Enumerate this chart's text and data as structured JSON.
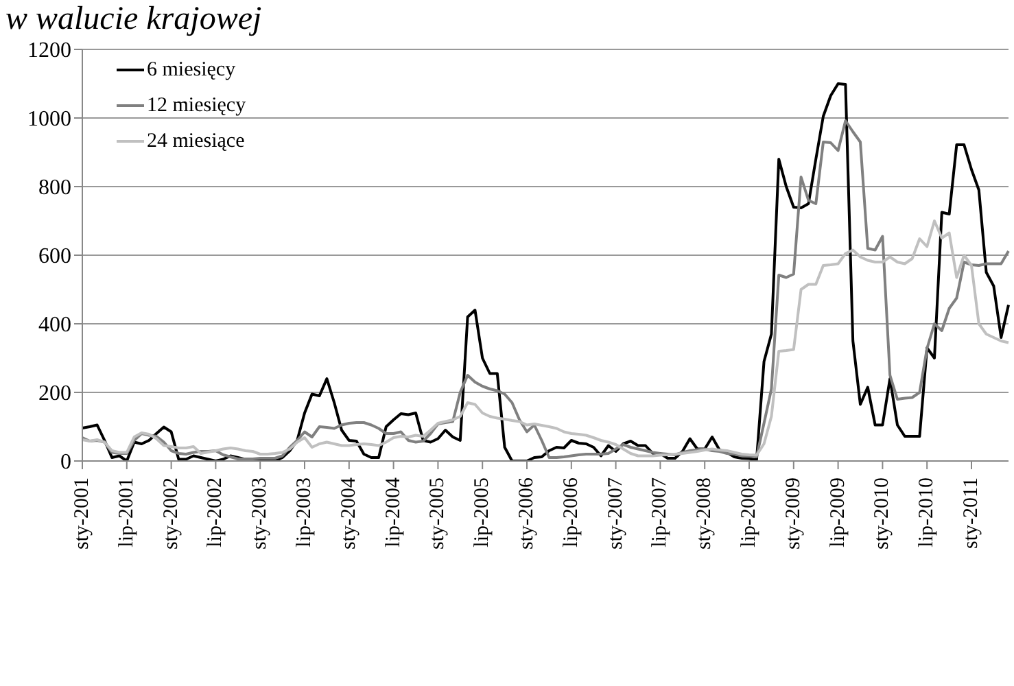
{
  "chart_data": {
    "type": "line",
    "title": "w walucie krajowej",
    "categories": [
      "sty-2001",
      null,
      null,
      null,
      null,
      null,
      "lip-2001",
      null,
      null,
      null,
      null,
      null,
      "sty-2002",
      null,
      null,
      null,
      null,
      null,
      "lip-2002",
      null,
      null,
      null,
      null,
      null,
      "sty-2003",
      null,
      null,
      null,
      null,
      null,
      "lip-2003",
      null,
      null,
      null,
      null,
      null,
      "sty-2004",
      null,
      null,
      null,
      null,
      null,
      "lip-2004",
      null,
      null,
      null,
      null,
      null,
      "sty-2005",
      null,
      null,
      null,
      null,
      null,
      "lip-2005",
      null,
      null,
      null,
      null,
      null,
      "sty-2006",
      null,
      null,
      null,
      null,
      null,
      "lip-2006",
      null,
      null,
      null,
      null,
      null,
      "sty-2007",
      null,
      null,
      null,
      null,
      null,
      "lip-2007",
      null,
      null,
      null,
      null,
      null,
      "sty-2008",
      null,
      null,
      null,
      null,
      null,
      "lip-2008",
      null,
      null,
      null,
      null,
      null,
      "sty-2009",
      null,
      null,
      null,
      null,
      null,
      "lip-2009",
      null,
      null,
      null,
      null,
      null,
      "sty-2010",
      null,
      null,
      null,
      null,
      null,
      "lip-2010",
      null,
      null,
      null,
      null,
      null,
      "sty-2011",
      null,
      null,
      null,
      null,
      null
    ],
    "series": [
      {
        "name": "6 miesięcy",
        "color": "#000000",
        "values": [
          96,
          100,
          105,
          60,
          10,
          15,
          0,
          55,
          50,
          60,
          80,
          99,
          85,
          5,
          5,
          15,
          10,
          5,
          0,
          5,
          15,
          10,
          5,
          0,
          5,
          5,
          0,
          10,
          30,
          60,
          140,
          195,
          190,
          240,
          170,
          90,
          60,
          58,
          20,
          10,
          10,
          100,
          120,
          138,
          135,
          140,
          60,
          55,
          65,
          90,
          70,
          60,
          420,
          440,
          300,
          255,
          255,
          40,
          0,
          0,
          0,
          10,
          12,
          30,
          40,
          38,
          60,
          52,
          50,
          40,
          15,
          45,
          28,
          50,
          58,
          45,
          45,
          22,
          22,
          8,
          8,
          28,
          65,
          35,
          35,
          70,
          32,
          25,
          12,
          8,
          7,
          3,
          290,
          370,
          880,
          800,
          740,
          738,
          750,
          880,
          1005,
          1065,
          1100,
          1098,
          350,
          165,
          215,
          105,
          105,
          240,
          105,
          72,
          72,
          72,
          330,
          300,
          725,
          720,
          922,
          922,
          850,
          790,
          550,
          510,
          360,
          455
        ]
      },
      {
        "name": "12 miesięcy",
        "color": "#808080",
        "values": [
          68,
          58,
          60,
          55,
          25,
          22,
          22,
          60,
          80,
          75,
          72,
          55,
          30,
          22,
          20,
          25,
          28,
          28,
          30,
          18,
          12,
          6,
          6,
          6,
          8,
          8,
          8,
          15,
          40,
          60,
          85,
          70,
          100,
          98,
          95,
          105,
          110,
          112,
          112,
          105,
          95,
          80,
          80,
          85,
          60,
          55,
          58,
          80,
          108,
          112,
          115,
          200,
          250,
          230,
          218,
          210,
          205,
          195,
          170,
          120,
          85,
          105,
          60,
          10,
          10,
          12,
          15,
          18,
          20,
          20,
          20,
          22,
          35,
          48,
          40,
          35,
          30,
          25,
          22,
          20,
          18,
          25,
          30,
          33,
          35,
          30,
          28,
          22,
          20,
          15,
          14,
          12,
          110,
          210,
          542,
          535,
          545,
          828,
          760,
          750,
          930,
          928,
          905,
          992,
          960,
          930,
          620,
          615,
          655,
          250,
          180,
          183,
          185,
          200,
          328,
          400,
          380,
          445,
          475,
          580,
          572,
          570,
          575,
          575,
          575,
          612
        ]
      },
      {
        "name": "24 miesiące",
        "color": "#c0c0c0",
        "values": [
          62,
          58,
          62,
          55,
          30,
          25,
          25,
          70,
          82,
          78,
          65,
          45,
          42,
          38,
          38,
          42,
          22,
          26,
          30,
          35,
          38,
          35,
          30,
          28,
          20,
          20,
          22,
          25,
          35,
          55,
          68,
          40,
          50,
          55,
          50,
          45,
          45,
          48,
          50,
          48,
          45,
          55,
          68,
          72,
          70,
          75,
          72,
          90,
          110,
          115,
          120,
          130,
          170,
          165,
          140,
          130,
          125,
          122,
          118,
          115,
          105,
          108,
          104,
          100,
          95,
          85,
          80,
          78,
          75,
          68,
          60,
          55,
          48,
          35,
          22,
          15,
          15,
          15,
          17,
          18,
          20,
          22,
          25,
          28,
          32,
          35,
          32,
          30,
          25,
          20,
          18,
          17,
          50,
          130,
          320,
          322,
          325,
          500,
          515,
          515,
          570,
          572,
          575,
          605,
          615,
          595,
          585,
          580,
          580,
          595,
          580,
          575,
          590,
          648,
          625,
          700,
          650,
          665,
          535,
          600,
          570,
          400,
          370,
          360,
          350,
          345
        ]
      }
    ],
    "ylim": [
      0,
      1200
    ],
    "yticks": [
      0,
      200,
      400,
      600,
      800,
      1000,
      1200
    ],
    "grid": "y",
    "legend": "top left",
    "marker": "none",
    "line_style": "solid"
  }
}
